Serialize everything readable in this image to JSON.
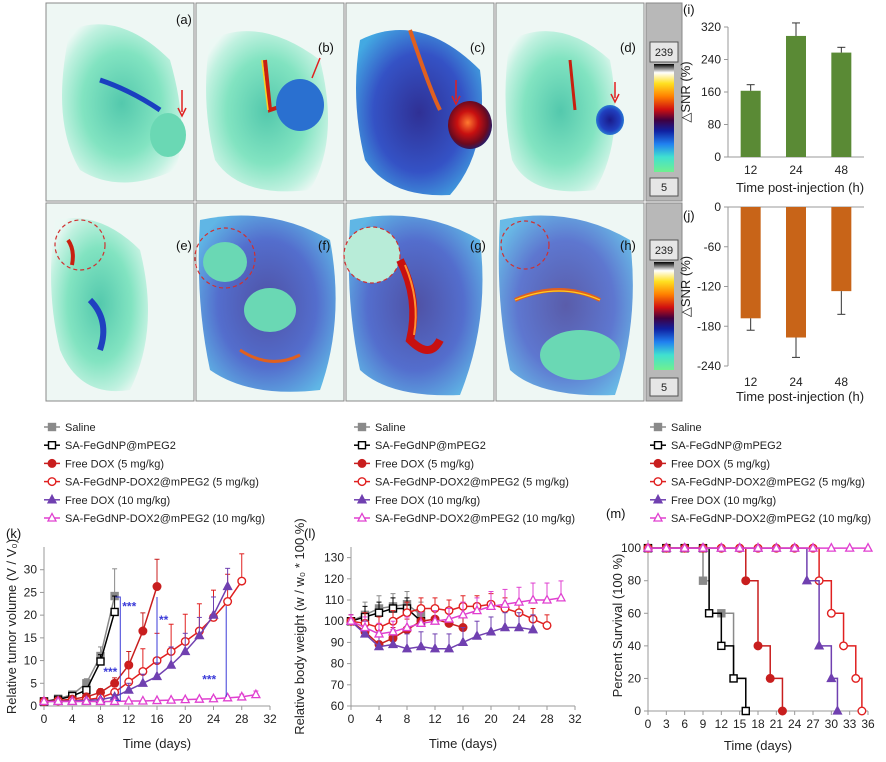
{
  "mri": {
    "panels": [
      "(a)",
      "(b)",
      "(c)",
      "(d)",
      "(e)",
      "(f)",
      "(g)",
      "(h)"
    ],
    "colorbar_max": "239",
    "colorbar_min": "5"
  },
  "chart_data": [
    {
      "id": "i",
      "panel_label": "(i)",
      "type": "bar",
      "categories": [
        "12",
        "24",
        "48"
      ],
      "values": [
        163,
        298,
        257
      ],
      "errors": [
        15,
        32,
        13
      ],
      "xlabel": "Time post-injection (h)",
      "ylabel": "△SNR (%)",
      "ylim": [
        0,
        320
      ],
      "yticks": [
        "0",
        "80",
        "160",
        "240",
        "320"
      ],
      "color": "#5a8a35",
      "grid": false
    },
    {
      "id": "j",
      "panel_label": "(j)",
      "type": "bar",
      "categories": [
        "12",
        "24",
        "48"
      ],
      "values": [
        -168,
        -197,
        -127
      ],
      "errors": [
        18,
        30,
        35
      ],
      "xlabel": "Time post-injection (h)",
      "ylabel": "△SNR (%)",
      "ylim": [
        -240,
        0
      ],
      "yticks": [
        "0",
        "-60",
        "-120",
        "-180",
        "-240"
      ],
      "color": "#c86418",
      "grid": false
    },
    {
      "id": "k",
      "panel_label": "(k)",
      "type": "line",
      "xlabel": "Time (days)",
      "ylabel": "Relative tumor volume (V / V₀)",
      "xlim": [
        0,
        32
      ],
      "ylim": [
        0,
        35
      ],
      "xticks": [
        "0",
        "4",
        "8",
        "12",
        "16",
        "20",
        "24",
        "28",
        "32"
      ],
      "yticks": [
        "0",
        "5",
        "10",
        "15",
        "20",
        "25",
        "30"
      ],
      "legend_position": "top",
      "annotations": [
        "***",
        "***",
        "**",
        "***"
      ],
      "series": [
        {
          "name": "Saline",
          "color": "#8a8a8a",
          "marker": "square-filled",
          "x": [
            0,
            2,
            4,
            6,
            8,
            10
          ],
          "y": [
            1,
            1.6,
            2.5,
            5,
            11,
            24.2
          ],
          "err": [
            0.2,
            0.3,
            0.5,
            1,
            2,
            6
          ]
        },
        {
          "name": "SA-FeGdNP@mPEG2",
          "color": "#000000",
          "marker": "square-open",
          "x": [
            0,
            2,
            4,
            6,
            8,
            10
          ],
          "y": [
            1,
            1.4,
            2.2,
            3.5,
            9.8,
            20.7
          ],
          "err": [
            0.2,
            0.3,
            0.4,
            0.8,
            1.5,
            3.5
          ]
        },
        {
          "name": "Free DOX (5 mg/kg)",
          "color": "#c81e1e",
          "marker": "circle-filled",
          "x": [
            0,
            2,
            4,
            6,
            8,
            10,
            12,
            14,
            16
          ],
          "y": [
            1,
            1.2,
            1.5,
            2,
            3,
            5,
            9,
            16.5,
            26.3
          ],
          "err": [
            0.1,
            0.2,
            0.3,
            0.5,
            0.8,
            1.2,
            3,
            4,
            6
          ]
        },
        {
          "name": "SA-FeGdNP-DOX2@mPEG2 (5 mg/kg)",
          "color": "#e02020",
          "marker": "circle-open",
          "x": [
            0,
            2,
            4,
            6,
            8,
            10,
            12,
            14,
            16,
            18,
            20,
            22,
            24,
            26,
            28
          ],
          "y": [
            1,
            1.1,
            1.2,
            1.4,
            1.8,
            3,
            5.3,
            7.6,
            10,
            12,
            14.2,
            16.5,
            19.5,
            23,
            27.5
          ],
          "err": [
            0.1,
            0.1,
            0.2,
            0.2,
            0.3,
            0.8,
            4,
            5,
            6,
            6,
            6,
            6,
            6,
            6,
            6
          ]
        },
        {
          "name": "Free DOX (10 mg/kg)",
          "color": "#7040b0",
          "marker": "triangle-filled",
          "x": [
            0,
            2,
            4,
            6,
            8,
            10,
            12,
            14,
            16,
            18,
            20,
            22,
            24,
            26
          ],
          "y": [
            1,
            1.05,
            1.1,
            1.2,
            1.4,
            2,
            3.5,
            5,
            6.5,
            9,
            12,
            15.5,
            20,
            26.3
          ],
          "err": [
            0.1,
            0.1,
            0.1,
            0.2,
            0.3,
            0.5,
            1.5,
            2,
            3,
            4,
            4,
            4,
            4,
            4
          ]
        },
        {
          "name": "SA-FeGdNP-DOX2@mPEG2 (10 mg/kg)",
          "color": "#e040d0",
          "marker": "triangle-open",
          "x": [
            0,
            2,
            4,
            6,
            8,
            10,
            12,
            14,
            16,
            18,
            20,
            22,
            24,
            26,
            28,
            30
          ],
          "y": [
            1,
            1,
            1,
            1,
            1,
            1,
            1.1,
            1.1,
            1.2,
            1.3,
            1.4,
            1.5,
            1.6,
            1.8,
            2,
            2.5
          ],
          "err": [
            0.1,
            0.1,
            0.1,
            0.1,
            0.1,
            0.1,
            0.2,
            0.2,
            0.2,
            0.3,
            0.3,
            0.3,
            0.4,
            0.4,
            0.6,
            0.8
          ]
        }
      ]
    },
    {
      "id": "l",
      "panel_label": "(l)",
      "type": "line",
      "xlabel": "Time (days)",
      "ylabel": "Relative body weight (w / w₀ * 100 %)",
      "xlim": [
        0,
        32
      ],
      "ylim": [
        60,
        135
      ],
      "xticks": [
        "0",
        "4",
        "8",
        "12",
        "16",
        "20",
        "24",
        "28",
        "32"
      ],
      "yticks": [
        "60",
        "70",
        "80",
        "90",
        "100",
        "110",
        "120",
        "130"
      ],
      "legend_position": "top",
      "series": [
        {
          "name": "Saline",
          "color": "#8a8a8a",
          "marker": "square-filled",
          "x": [
            0,
            2,
            4,
            6,
            8,
            10
          ],
          "y": [
            100,
            103,
            106,
            107,
            108,
            103
          ],
          "err": [
            3,
            6,
            6,
            6,
            6,
            6
          ]
        },
        {
          "name": "SA-FeGdNP@mPEG2",
          "color": "#000000",
          "marker": "square-open",
          "x": [
            0,
            2,
            4,
            6,
            8,
            10
          ],
          "y": [
            100,
            102,
            104,
            106,
            106,
            100
          ],
          "err": [
            3,
            5,
            5,
            5,
            5,
            5
          ]
        },
        {
          "name": "Free DOX (5 mg/kg)",
          "color": "#c81e1e",
          "marker": "circle-filled",
          "x": [
            0,
            2,
            4,
            6,
            8,
            10,
            12,
            14,
            16
          ],
          "y": [
            100,
            95,
            89,
            92,
            96,
            100,
            101,
            99,
            97
          ],
          "err": [
            3,
            5,
            5,
            5,
            5,
            5,
            5,
            5,
            5
          ]
        },
        {
          "name": "SA-FeGdNP-DOX2@mPEG2 (5 mg/kg)",
          "color": "#e02020",
          "marker": "circle-open",
          "x": [
            0,
            2,
            4,
            6,
            8,
            10,
            12,
            14,
            16,
            18,
            20,
            22,
            24,
            26,
            28
          ],
          "y": [
            100,
            99,
            97,
            100,
            104,
            106,
            106,
            105,
            107,
            107,
            108,
            106,
            104,
            101,
            98
          ],
          "err": [
            3,
            5,
            5,
            5,
            5,
            5,
            5,
            5,
            5,
            5,
            5,
            5,
            5,
            5,
            5
          ]
        },
        {
          "name": "Free DOX (10 mg/kg)",
          "color": "#7040b0",
          "marker": "triangle-filled",
          "x": [
            0,
            2,
            4,
            6,
            8,
            10,
            12,
            14,
            16,
            18,
            20,
            22,
            24,
            26
          ],
          "y": [
            100,
            94,
            88,
            89,
            87,
            88,
            87,
            87,
            90,
            93,
            95,
            97,
            97,
            96
          ],
          "err": [
            3,
            6,
            7,
            7,
            7,
            7,
            7,
            7,
            7,
            7,
            7,
            7,
            7,
            7
          ]
        },
        {
          "name": "SA-FeGdNP-DOX2@mPEG2 (10 mg/kg)",
          "color": "#e040d0",
          "marker": "triangle-open",
          "x": [
            0,
            2,
            4,
            6,
            8,
            10,
            12,
            14,
            16,
            18,
            20,
            22,
            24,
            26,
            28,
            30
          ],
          "y": [
            100,
            97,
            94,
            95,
            97,
            99,
            100,
            101,
            103,
            105,
            107,
            108,
            109,
            110,
            110,
            111
          ],
          "err": [
            3,
            5,
            5,
            5,
            5,
            5,
            5,
            5,
            6,
            6,
            7,
            7,
            7,
            8,
            8,
            8
          ]
        }
      ]
    },
    {
      "id": "m",
      "panel_label": "(m)",
      "type": "line",
      "step": true,
      "xlabel": "Time (days)",
      "ylabel": "Percent Survival (100 %)",
      "xlim": [
        0,
        36
      ],
      "ylim": [
        0,
        105
      ],
      "xticks": [
        "0",
        "3",
        "6",
        "9",
        "12",
        "15",
        "18",
        "21",
        "24",
        "27",
        "30",
        "33",
        "36"
      ],
      "yticks": [
        "0",
        "20",
        "40",
        "60",
        "80",
        "100"
      ],
      "legend_position": "top",
      "series": [
        {
          "name": "Saline",
          "color": "#8a8a8a",
          "marker": "square-filled",
          "x": [
            0,
            3,
            6,
            9,
            10,
            12,
            14,
            16
          ],
          "y": [
            100,
            100,
            100,
            80,
            60,
            60,
            20,
            0
          ]
        },
        {
          "name": "SA-FeGdNP@mPEG2",
          "color": "#000000",
          "marker": "square-open",
          "x": [
            0,
            3,
            6,
            9,
            10,
            12,
            14,
            16
          ],
          "y": [
            100,
            100,
            100,
            100,
            60,
            40,
            20,
            0
          ]
        },
        {
          "name": "Free DOX (5 mg/kg)",
          "color": "#c81e1e",
          "marker": "circle-filled",
          "x": [
            0,
            3,
            6,
            9,
            12,
            15,
            16,
            18,
            20,
            22
          ],
          "y": [
            100,
            100,
            100,
            100,
            100,
            100,
            80,
            40,
            20,
            0
          ]
        },
        {
          "name": "SA-FeGdNP-DOX2@mPEG2 (5 mg/kg)",
          "color": "#e02020",
          "marker": "circle-open",
          "x": [
            0,
            3,
            6,
            9,
            12,
            15,
            18,
            21,
            24,
            27,
            28,
            30,
            32,
            34,
            35
          ],
          "y": [
            100,
            100,
            100,
            100,
            100,
            100,
            100,
            100,
            100,
            100,
            80,
            60,
            40,
            20,
            0
          ]
        },
        {
          "name": "Free DOX (10 mg/kg)",
          "color": "#7040b0",
          "marker": "triangle-filled",
          "x": [
            0,
            3,
            6,
            9,
            12,
            15,
            18,
            21,
            24,
            26,
            28,
            30,
            31
          ],
          "y": [
            100,
            100,
            100,
            100,
            100,
            100,
            100,
            100,
            100,
            80,
            40,
            20,
            0
          ]
        },
        {
          "name": "SA-FeGdNP-DOX2@mPEG2 (10 mg/kg)",
          "color": "#e040d0",
          "marker": "triangle-open",
          "x": [
            0,
            3,
            6,
            9,
            12,
            15,
            18,
            21,
            24,
            27,
            30,
            33,
            36
          ],
          "y": [
            100,
            100,
            100,
            100,
            100,
            100,
            100,
            100,
            100,
            100,
            100,
            100,
            100
          ]
        }
      ]
    }
  ]
}
